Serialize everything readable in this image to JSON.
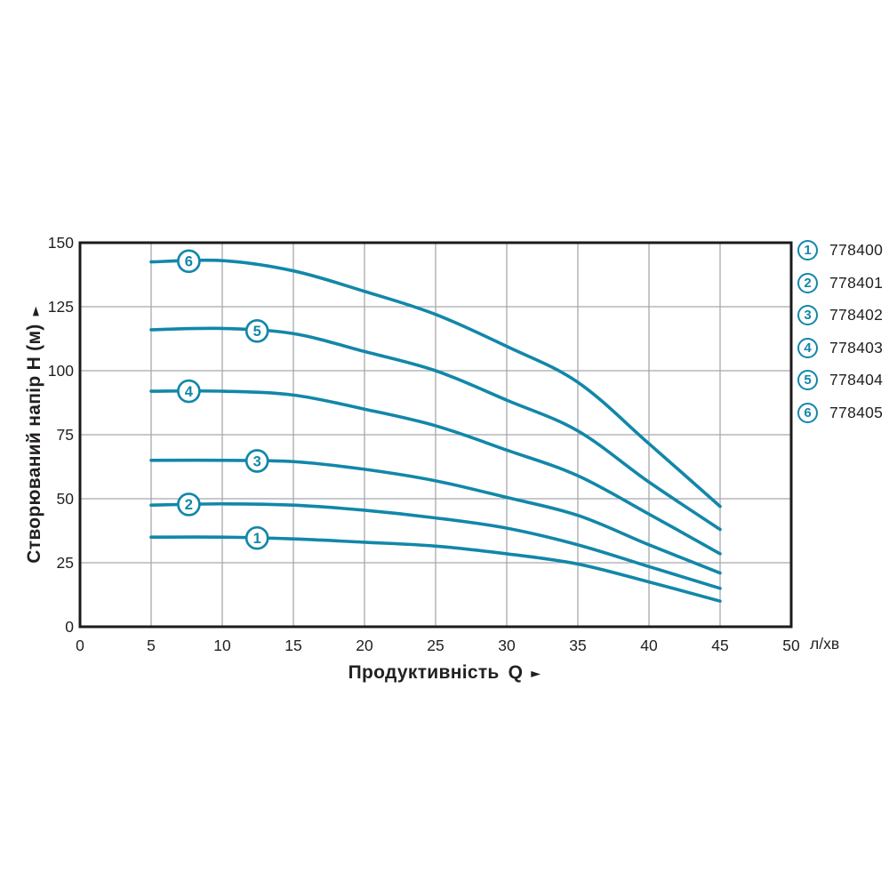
{
  "chart_data": {
    "type": "line",
    "title": "",
    "x_title": "Продуктивність",
    "x_symbol": "Q",
    "y_title": "Створюваний напір H (м)",
    "x_unit": "л/хв",
    "xlim": [
      0,
      50
    ],
    "ylim": [
      0,
      150
    ],
    "x_ticks": [
      0,
      5,
      10,
      15,
      20,
      25,
      30,
      35,
      40,
      45,
      50
    ],
    "y_ticks": [
      0,
      25,
      50,
      75,
      100,
      125,
      150
    ],
    "grid": true,
    "legend_position": "right",
    "x": [
      5,
      10,
      15,
      20,
      25,
      30,
      35,
      40,
      45
    ],
    "series": [
      {
        "num": "1",
        "code": "778400",
        "label_q": 12.45,
        "values": [
          35,
          35,
          34.3,
          33,
          31.5,
          28.5,
          24.5,
          17.5,
          10
        ]
      },
      {
        "num": "2",
        "code": "778401",
        "label_q": 7.65,
        "values": [
          47.5,
          48,
          47.5,
          45.5,
          42.5,
          38.5,
          32,
          23.5,
          15
        ]
      },
      {
        "num": "3",
        "code": "778402",
        "label_q": 12.45,
        "values": [
          65,
          65,
          64.5,
          61.5,
          57,
          50.5,
          43.5,
          32,
          21
        ]
      },
      {
        "num": "4",
        "code": "778403",
        "label_q": 7.65,
        "values": [
          92,
          92,
          90.5,
          85,
          78.5,
          69,
          59,
          44,
          28.5
        ]
      },
      {
        "num": "5",
        "code": "778404",
        "label_q": 12.45,
        "values": [
          116,
          116.5,
          114.5,
          107.5,
          100,
          88.5,
          76.5,
          56.5,
          38
        ]
      },
      {
        "num": "6",
        "code": "778405",
        "label_q": 7.65,
        "values": [
          142.5,
          143,
          139,
          131,
          122,
          109.5,
          95.5,
          71.5,
          47
        ]
      }
    ],
    "colors": {
      "curve": "#1287A9",
      "grid": "#A7A9AC",
      "border": "#1B1B1B",
      "text": "#231F20",
      "background": "#FFFFFF"
    }
  },
  "icons": {
    "x_axis_arrow": "►",
    "y_axis_arrow": "►"
  }
}
